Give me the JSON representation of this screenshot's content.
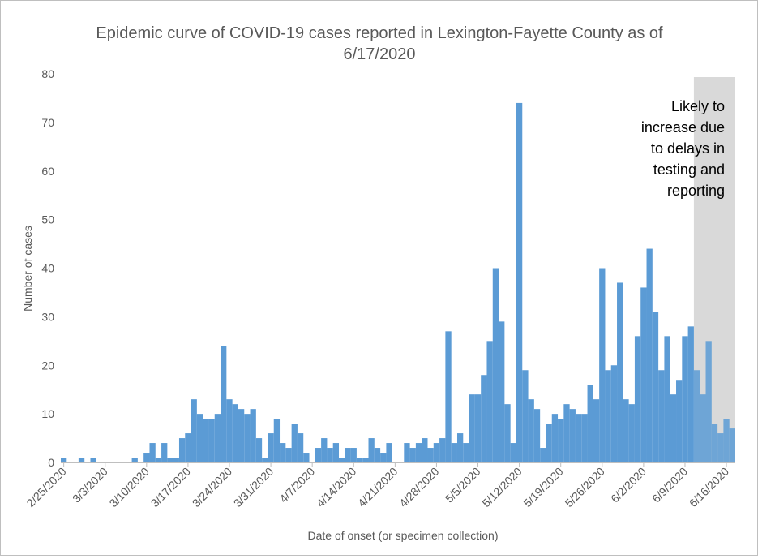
{
  "chart_data": {
    "type": "bar",
    "title_line1": "Epidemic curve of COVID-19 cases reported in Lexington-Fayette County as of",
    "title_line2": "6/17/2020",
    "xlabel": "Date of onset (or specimen collection)",
    "ylabel": "Number of cases",
    "ylim": [
      0,
      80
    ],
    "yticks": [
      "0",
      "10",
      "20",
      "30",
      "40",
      "50",
      "60",
      "70",
      "80"
    ],
    "start_date": "2/25/2020",
    "xtick_labels": [
      "2/25/2020",
      "3/3/2020",
      "3/10/2020",
      "3/17/2020",
      "3/24/2020",
      "3/31/2020",
      "4/7/2020",
      "4/14/2020",
      "4/21/2020",
      "4/28/2020",
      "5/5/2020",
      "5/12/2020",
      "5/19/2020",
      "5/26/2020",
      "6/2/2020",
      "6/9/2020",
      "6/16/2020"
    ],
    "values": [
      1,
      0,
      0,
      1,
      0,
      1,
      0,
      0,
      0,
      0,
      0,
      0,
      1,
      0,
      2,
      4,
      1,
      4,
      1,
      1,
      5,
      6,
      13,
      10,
      9,
      9,
      10,
      24,
      13,
      12,
      11,
      10,
      11,
      5,
      1,
      6,
      9,
      4,
      3,
      8,
      6,
      2,
      0,
      3,
      5,
      3,
      4,
      1,
      3,
      3,
      1,
      1,
      5,
      3,
      2,
      4,
      0,
      0,
      4,
      3,
      4,
      5,
      3,
      4,
      5,
      27,
      4,
      6,
      4,
      14,
      14,
      18,
      25,
      40,
      29,
      12,
      4,
      74,
      19,
      13,
      11,
      3,
      8,
      10,
      9,
      12,
      11,
      10,
      10,
      16,
      13,
      40,
      19,
      20,
      37,
      13,
      12,
      26,
      36,
      44,
      31,
      19,
      26,
      14,
      17,
      26,
      28,
      19,
      14,
      25,
      8,
      6,
      9,
      7
    ],
    "bar_color": "#5b9bd5",
    "shaded_region": {
      "start_index": 107,
      "end_index": 113,
      "color": "#d9d9d9",
      "annotation": [
        "Likely to",
        "increase due",
        "to delays in",
        "testing and",
        "reporting"
      ]
    },
    "grid": false,
    "legend": "none"
  }
}
